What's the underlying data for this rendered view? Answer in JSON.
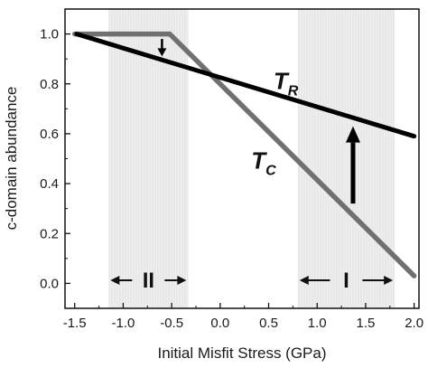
{
  "chart_data": {
    "type": "line",
    "xlabel": "Initial Misfit Stress (GPa)",
    "ylabel": "c-domain abundance",
    "xlim": [
      -1.6,
      2.05
    ],
    "ylim": [
      -0.1,
      1.1
    ],
    "xticks": [
      -1.5,
      -1.0,
      -0.5,
      0.0,
      0.5,
      1.0,
      1.5,
      2.0
    ],
    "xtick_labels": [
      "-1.5",
      "-1.0",
      "-0.5",
      "0.0",
      "0.5",
      "1.0",
      "1.5",
      "2.0"
    ],
    "yticks": [
      0.0,
      0.2,
      0.4,
      0.6,
      0.8,
      1.0
    ],
    "ytick_labels": [
      "0.0",
      "0.2",
      "0.4",
      "0.6",
      "0.8",
      "1.0"
    ],
    "grid": false,
    "series": [
      {
        "name_main": "T",
        "name_sub": "R",
        "color": "#000000",
        "points": [
          [
            -1.48,
            1.0
          ],
          [
            2.0,
            0.59
          ]
        ]
      },
      {
        "name_main": "T",
        "name_sub": "C",
        "color": "#707070",
        "points": [
          [
            -1.5,
            1.0
          ],
          [
            -0.52,
            1.0
          ],
          [
            2.0,
            0.03
          ]
        ]
      }
    ],
    "regions": [
      {
        "label": "II",
        "x_range": [
          -1.15,
          -0.33
        ]
      },
      {
        "label": "I",
        "x_range": [
          0.8,
          1.8
        ]
      }
    ],
    "annotations": [
      {
        "type": "arrow",
        "from": [
          -0.6,
          0.98
        ],
        "to": [
          -0.6,
          0.91
        ]
      },
      {
        "type": "arrow",
        "from": [
          1.37,
          0.32
        ],
        "to": [
          1.37,
          0.63
        ]
      }
    ]
  }
}
